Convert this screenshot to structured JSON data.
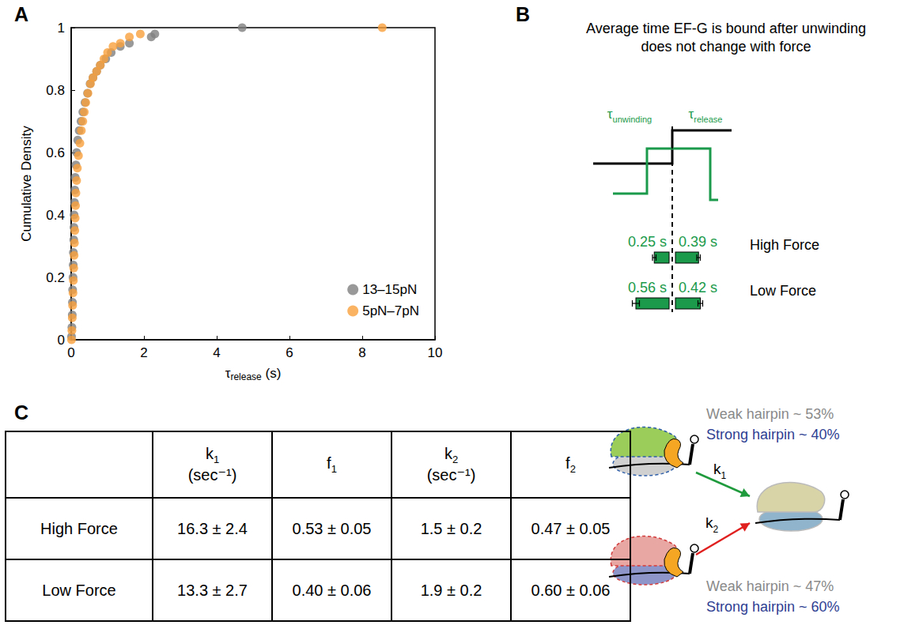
{
  "panel_labels": [
    "A",
    "B",
    "C"
  ],
  "chart_data": {
    "type": "scatter",
    "xlabel": [
      "τ",
      "release",
      " (s)"
    ],
    "ylabel": "Cumulative Density",
    "xlim": [
      0,
      10
    ],
    "xticks": [
      0,
      2,
      4,
      6,
      8,
      10
    ],
    "ylim": [
      0,
      1
    ],
    "yticks": [
      0,
      0.2,
      0.4,
      0.6,
      0.8,
      1
    ],
    "grid": false,
    "legend": "lower right",
    "marker": "circle",
    "series": [
      {
        "name": "13–15pN",
        "color": "#7f7f7f",
        "x": [
          0.01,
          0.02,
          0.03,
          0.035,
          0.04,
          0.05,
          0.055,
          0.06,
          0.07,
          0.075,
          0.08,
          0.09,
          0.1,
          0.11,
          0.13,
          0.15,
          0.18,
          0.22,
          0.27,
          0.32,
          0.38,
          0.45,
          0.52,
          0.6,
          0.7,
          0.8,
          0.95,
          1.1,
          1.35,
          1.6,
          2.2,
          2.3,
          4.7
        ],
        "values": [
          0.01,
          0.04,
          0.08,
          0.12,
          0.16,
          0.2,
          0.24,
          0.28,
          0.32,
          0.36,
          0.4,
          0.44,
          0.48,
          0.52,
          0.56,
          0.6,
          0.64,
          0.67,
          0.7,
          0.73,
          0.76,
          0.79,
          0.82,
          0.84,
          0.86,
          0.88,
          0.9,
          0.92,
          0.94,
          0.95,
          0.97,
          0.98,
          1.0
        ]
      },
      {
        "name": "5pN–7pN",
        "color": "#f7a03c",
        "x": [
          0.01,
          0.02,
          0.03,
          0.04,
          0.05,
          0.06,
          0.07,
          0.08,
          0.09,
          0.1,
          0.11,
          0.12,
          0.13,
          0.15,
          0.17,
          0.2,
          0.24,
          0.28,
          0.32,
          0.36,
          0.4,
          0.46,
          0.53,
          0.6,
          0.7,
          0.8,
          0.9,
          1.0,
          1.15,
          1.35,
          1.6,
          1.9,
          8.55
        ],
        "values": [
          0.0,
          0.03,
          0.07,
          0.11,
          0.15,
          0.19,
          0.23,
          0.27,
          0.31,
          0.35,
          0.39,
          0.43,
          0.47,
          0.51,
          0.55,
          0.59,
          0.63,
          0.67,
          0.7,
          0.73,
          0.76,
          0.79,
          0.82,
          0.84,
          0.86,
          0.88,
          0.9,
          0.92,
          0.94,
          0.95,
          0.97,
          0.98,
          1.0
        ]
      }
    ]
  },
  "panel_b": {
    "title": "Average time EF-G is bound after unwinding does not change with force",
    "unwinding_label": [
      "τ",
      "unwinding"
    ],
    "release_label": [
      "τ",
      "release"
    ],
    "color": "#1a9a4a",
    "rows": [
      {
        "label": "High Force",
        "unwinding": 0.25,
        "unwinding_label": "0.25 s",
        "unwinding_error": 0.03,
        "release": 0.39,
        "release_label": "0.39 s",
        "release_error": 0.03
      },
      {
        "label": "Low Force",
        "unwinding": 0.56,
        "unwinding_label": "0.56 s",
        "unwinding_error": 0.06,
        "release": 0.42,
        "release_label": "0.42 s",
        "release_error": 0.04
      }
    ]
  },
  "panel_c": {
    "table": {
      "header": [
        {
          "symbol": "k",
          "sub": "1",
          "unit": "(sec⁻¹)"
        },
        {
          "symbol": "f",
          "sub": "1"
        },
        {
          "symbol": "k",
          "sub": "2",
          "unit": "(sec⁻¹)"
        },
        {
          "symbol": "f",
          "sub": "2"
        }
      ],
      "rows": [
        [
          "High Force",
          "16.3 ± 2.4",
          "0.53 ± 0.05",
          "1.5 ± 0.2",
          "0.47 ± 0.05"
        ],
        [
          "Low Force",
          "13.3 ± 2.7",
          "0.40 ± 0.06",
          "1.9 ± 0.2",
          "0.60 ± 0.06"
        ]
      ]
    },
    "diagram": {
      "k1": [
        "k",
        "1"
      ],
      "k1_color": "#1f9a3c",
      "k2": [
        "k",
        "2"
      ],
      "k2_color": "#e0201f",
      "top_weak": "Weak hairpin ~ 53%",
      "top_strong": "Strong hairpin ~ 40%",
      "bottom_weak": "Weak hairpin ~ 47%",
      "bottom_strong": "Strong hairpin ~ 60%",
      "weak_color": "#8a8a8a",
      "strong_color": "#2e3f93"
    }
  }
}
